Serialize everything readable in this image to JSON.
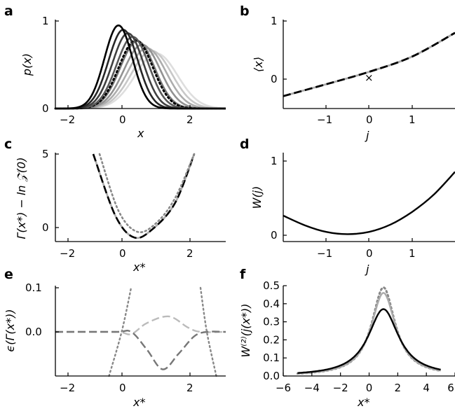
{
  "chart_data": [
    {
      "panel": "a",
      "type": "line",
      "xlabel": "x",
      "ylabel": "p(x)",
      "xlim": [
        -2.4,
        3.0
      ],
      "ylim": [
        0,
        1
      ],
      "xticks": [
        "−2",
        "0",
        "2"
      ],
      "yticks": [
        "0",
        "1"
      ],
      "series_description": "Gaussian curves, gray levels from dark to light",
      "series": [
        {
          "color": "#000000",
          "mean": -0.4,
          "peak": 0.95,
          "style": "solid"
        },
        {
          "color": "#262626",
          "mean": -0.25,
          "peak": 0.9,
          "style": "solid"
        },
        {
          "color": "#404040",
          "mean": -0.1,
          "peak": 0.86,
          "style": "solid"
        },
        {
          "color": "#5a5a5a",
          "mean": 0.05,
          "peak": 0.82,
          "style": "solid"
        },
        {
          "color": "#000000",
          "mean": 0.15,
          "peak": 0.78,
          "style": "dotted"
        },
        {
          "color": "#777777",
          "mean": 0.2,
          "peak": 0.77,
          "style": "solid"
        },
        {
          "color": "#929292",
          "mean": 0.35,
          "peak": 0.73,
          "style": "solid"
        },
        {
          "color": "#adadad",
          "mean": 0.5,
          "peak": 0.69,
          "style": "solid"
        },
        {
          "color": "#c8c8c8",
          "mean": 0.65,
          "peak": 0.66,
          "style": "solid"
        },
        {
          "color": "#dedede",
          "mean": 0.8,
          "peak": 0.63,
          "style": "solid"
        }
      ]
    },
    {
      "panel": "b",
      "type": "line",
      "xlabel": "j",
      "ylabel": "⟨x⟩",
      "xlim": [
        -2.0,
        2.0
      ],
      "ylim": [
        -0.55,
        1.0
      ],
      "xticks": [
        "−1",
        "0",
        "1"
      ],
      "yticks": [
        "0",
        "1"
      ],
      "marker": {
        "x": 0,
        "y": 0.1,
        "symbol": "×"
      },
      "series": [
        {
          "color": "#aaaaaa",
          "style": "solid",
          "x": [
            -2,
            -1,
            0,
            1,
            2
          ],
          "y": [
            -0.33,
            -0.12,
            0.1,
            0.37,
            0.79
          ]
        },
        {
          "color": "#000000",
          "style": "dashed",
          "x": [
            -2,
            -1,
            0,
            1,
            2
          ],
          "y": [
            -0.33,
            -0.12,
            0.1,
            0.37,
            0.79
          ]
        }
      ]
    },
    {
      "panel": "c",
      "type": "line",
      "xlabel": "x*",
      "ylabel": "Γ(x*) − ln 𝒵(0)",
      "xlim": [
        -2.4,
        3.0
      ],
      "ylim": [
        -0.4,
        5.0
      ],
      "xticks": [
        "−2",
        "0",
        "2"
      ],
      "yticks": [
        "0",
        "5"
      ],
      "series": [
        {
          "color": "#aaaaaa",
          "style": "solid",
          "x": [
            -1.2,
            -0.5,
            0.1,
            0.7,
            1.4,
            2.0
          ],
          "y": [
            5.0,
            1.2,
            -0.15,
            0.4,
            2.0,
            5.0
          ]
        },
        {
          "color": "#000000",
          "style": "dashed",
          "x": [
            -1.2,
            -0.5,
            0.1,
            0.7,
            1.4,
            2.0
          ],
          "y": [
            5.0,
            1.2,
            -0.15,
            0.4,
            2.0,
            5.0
          ]
        },
        {
          "color": "#888888",
          "style": "dotted",
          "x": [
            -1.0,
            -0.4,
            0.2,
            0.8,
            1.4,
            2.0
          ],
          "y": [
            5.0,
            1.5,
            0.2,
            0.75,
            2.3,
            5.0
          ]
        }
      ]
    },
    {
      "panel": "d",
      "type": "line",
      "xlabel": "j",
      "ylabel": "W(j)",
      "xlim": [
        -2.0,
        2.0
      ],
      "ylim": [
        -0.1,
        1.1
      ],
      "xticks": [
        "−1",
        "0",
        "1"
      ],
      "yticks": [
        "0",
        "1"
      ],
      "series": [
        {
          "color": "#000000",
          "style": "solid",
          "x": [
            -2,
            -1.5,
            -1,
            -0.5,
            0,
            0.5,
            1,
            1.5,
            2
          ],
          "y": [
            0.25,
            0.12,
            0.03,
            0.0,
            0.03,
            0.13,
            0.3,
            0.53,
            0.84
          ]
        }
      ]
    },
    {
      "panel": "e",
      "type": "line",
      "xlabel": "x*",
      "ylabel": "ϵ(Γ(x*))",
      "xlim": [
        -2.4,
        3.0
      ],
      "ylim": [
        -0.1,
        0.1
      ],
      "xticks": [
        "−2",
        "0",
        "2"
      ],
      "yticks": [
        "0.0",
        "0.1"
      ],
      "series": [
        {
          "color": "#bbbbbb",
          "style": "dashed",
          "x": [
            -2.4,
            -0.5,
            0,
            0.5,
            1.2,
            1.8,
            2.2,
            3.0
          ],
          "y": [
            0,
            0,
            -0.005,
            0.02,
            0.035,
            0.01,
            0,
            0
          ]
        },
        {
          "color": "#777777",
          "style": "dashed",
          "x": [
            -2.4,
            -0.5,
            0,
            0.5,
            1.0,
            1.5,
            2.0,
            2.4,
            3.0
          ],
          "y": [
            0,
            0,
            0,
            -0.04,
            -0.085,
            -0.05,
            -0.01,
            0,
            0
          ]
        },
        {
          "color": "#888888",
          "style": "dotted",
          "x": [
            -0.7,
            -0.3,
            0.0
          ],
          "y": [
            -0.1,
            0.0,
            0.1
          ]
        },
        {
          "color": "#888888",
          "style": "dotted",
          "x": [
            2.2,
            2.4,
            2.7
          ],
          "y": [
            0.1,
            0.0,
            -0.1
          ]
        }
      ]
    },
    {
      "panel": "f",
      "type": "line",
      "xlabel": "x*",
      "ylabel": "W⁽²⁾(j(x*))",
      "xlim": [
        -6.0,
        6.0
      ],
      "ylim": [
        0,
        0.5
      ],
      "xticks": [
        "−6",
        "−4",
        "−2",
        "0",
        "2",
        "4",
        "6"
      ],
      "yticks": [
        "0.0",
        "0.1",
        "0.2",
        "0.3",
        "0.4",
        "0.5"
      ],
      "series": [
        {
          "color": "#000000",
          "style": "solid",
          "center": 1.0,
          "peak": 0.37,
          "width": 1.3
        },
        {
          "color": "#aaaaaa",
          "style": "solid",
          "center": 1.0,
          "peak": 0.46,
          "width": 1.05
        },
        {
          "color": "#888888",
          "style": "dotted",
          "center": 1.0,
          "peak": 0.49,
          "width": 1.0
        }
      ]
    }
  ],
  "labels": {
    "a": "a",
    "b": "b",
    "c": "c",
    "d": "d",
    "e": "e",
    "f": "f"
  }
}
